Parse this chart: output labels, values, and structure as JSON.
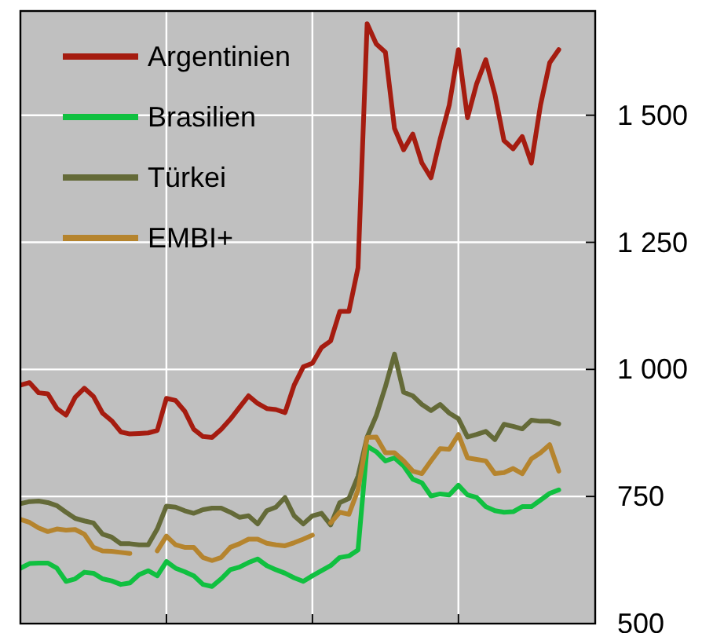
{
  "chart_data": {
    "type": "line",
    "categories": [
      null,
      null,
      null,
      null,
      null,
      null,
      null,
      null,
      null,
      null,
      null,
      null,
      null,
      null,
      null,
      null,
      null,
      null,
      null,
      null,
      null,
      null,
      null,
      null,
      null,
      null,
      null,
      null,
      null,
      null,
      null,
      null,
      null,
      null,
      null,
      null,
      null,
      null,
      null,
      null,
      null,
      null,
      null,
      null,
      null,
      null,
      null,
      null,
      null,
      null,
      null,
      null,
      null,
      null,
      null,
      null,
      null,
      null,
      null,
      null
    ],
    "ylim": [
      500,
      1705
    ],
    "yticks": [
      500,
      750,
      {
        "value": 1000,
        "label": "1 000"
      },
      {
        "value": 1250,
        "label": "1 250"
      },
      {
        "value": 1500,
        "label": "1 500"
      }
    ],
    "grid": true,
    "legend": "top left",
    "series": [
      {
        "name": "Argentinien",
        "color": "#a51c10",
        "values": [
          969,
          974,
          954,
          952,
          923,
          910,
          945,
          963,
          947,
          914,
          899,
          877,
          873,
          874,
          875,
          880,
          943,
          939,
          918,
          882,
          868,
          866,
          882,
          902,
          925,
          948,
          933,
          923,
          921,
          915,
          969,
          1005,
          1012,
          1043,
          1056,
          1114,
          1114,
          1200,
          1680,
          1640,
          1624,
          1474,
          1432,
          1463,
          1406,
          1377,
          1453,
          1520,
          1629,
          1495,
          1562,
          1609,
          1541,
          1450,
          1434,
          1458,
          1406,
          1520,
          1603,
          1629
        ]
      },
      {
        "name": "Brasilien",
        "color": "#10c040",
        "values": [
          609,
          618,
          619,
          619,
          609,
          583,
          588,
          601,
          599,
          588,
          584,
          577,
          580,
          596,
          604,
          594,
          622,
          609,
          602,
          594,
          577,
          573,
          588,
          606,
          611,
          620,
          627,
          614,
          606,
          599,
          590,
          583,
          594,
          604,
          614,
          630,
          633,
          645,
          849,
          838,
          820,
          826,
          810,
          784,
          777,
          751,
          755,
          753,
          772,
          753,
          748,
          730,
          722,
          719,
          720,
          730,
          730,
          743,
          756,
          763
        ]
      },
      {
        "name": "Türkei",
        "color": "#646a38",
        "values": [
          736,
          740,
          741,
          738,
          732,
          719,
          707,
          702,
          698,
          676,
          670,
          657,
          657,
          655,
          655,
          686,
          731,
          729,
          722,
          717,
          724,
          727,
          727,
          719,
          709,
          712,
          696,
          722,
          729,
          748,
          712,
          696,
          712,
          717,
          694,
          738,
          746,
          790,
          867,
          909,
          966,
          1030,
          955,
          948,
          931,
          919,
          931,
          914,
          903,
          867,
          872,
          878,
          862,
          892,
          888,
          883,
          900,
          898,
          898,
          893
        ]
      },
      {
        "name": "EMBI+",
        "color": "#b5842e",
        "values": [
          705,
          699,
          688,
          681,
          686,
          684,
          685,
          676,
          650,
          643,
          642,
          640,
          638,
          null,
          null,
          643,
          672,
          655,
          650,
          650,
          630,
          624,
          630,
          650,
          657,
          666,
          666,
          658,
          655,
          653,
          659,
          666,
          674,
          null,
          698,
          719,
          715,
          763,
          866,
          867,
          836,
          836,
          820,
          800,
          795,
          820,
          844,
          843,
          872,
          826,
          823,
          820,
          795,
          797,
          805,
          795,
          824,
          836,
          852,
          800
        ]
      }
    ]
  }
}
